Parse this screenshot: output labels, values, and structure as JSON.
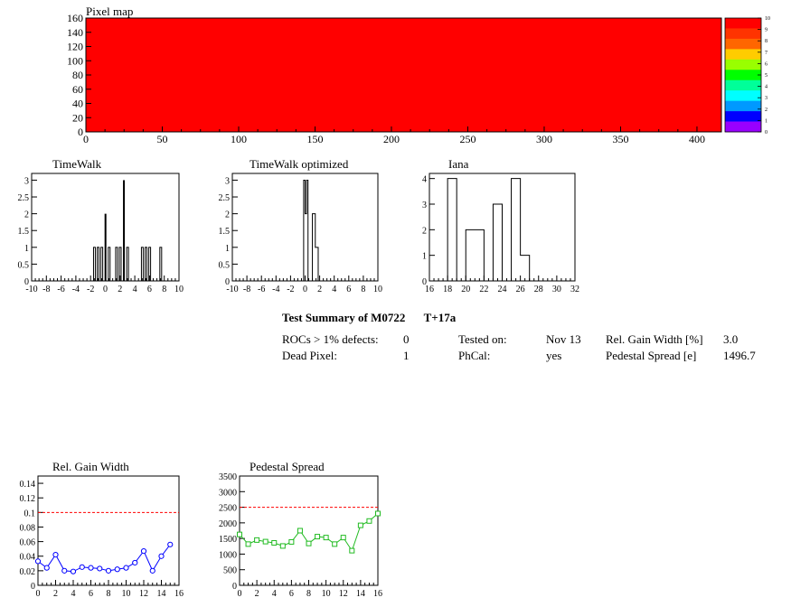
{
  "pixel_map": {
    "title": "Pixel map",
    "fill_color": "#ff0000",
    "palette_labels": [
      "10",
      "9",
      "8",
      "7",
      "6",
      "5",
      "4",
      "3",
      "2",
      "1",
      "0"
    ],
    "palette_colors": [
      "#ff0000",
      "#ff3300",
      "#ff6600",
      "#ffcc00",
      "#99ff00",
      "#00ff00",
      "#00ff99",
      "#00ffff",
      "#0099ff",
      "#0000ff",
      "#9900ff"
    ]
  },
  "chart_data": [
    {
      "type": "heatmap",
      "title": "Pixel map",
      "xlim": [
        0,
        416
      ],
      "ylim": [
        0,
        160
      ],
      "xticks": [
        0,
        50,
        100,
        150,
        200,
        250,
        300,
        350,
        400
      ],
      "yticks": [
        0,
        20,
        40,
        60,
        80,
        100,
        120,
        140,
        160
      ],
      "zlim": [
        0,
        10
      ],
      "uniform_value": 10
    },
    {
      "type": "bar",
      "title": "TimeWalk",
      "xlim": [
        -10,
        10
      ],
      "ylim": [
        0,
        3.2
      ],
      "xticks": [
        -10,
        -8,
        -6,
        -4,
        -2,
        0,
        2,
        4,
        6,
        8,
        10
      ],
      "yticks": [
        "0",
        "0.5",
        "1",
        "1.5",
        "2",
        "2.5",
        "3"
      ],
      "bins": [
        {
          "x": -1.5,
          "y": 1
        },
        {
          "x": -1.0,
          "y": 1
        },
        {
          "x": -0.5,
          "y": 1
        },
        {
          "x": 0.0,
          "y": 2
        },
        {
          "x": 0.5,
          "y": 1
        },
        {
          "x": 1.5,
          "y": 1
        },
        {
          "x": 2.0,
          "y": 1
        },
        {
          "x": 2.5,
          "y": 3
        },
        {
          "x": 3.0,
          "y": 1
        },
        {
          "x": 5.0,
          "y": 1
        },
        {
          "x": 5.5,
          "y": 1
        },
        {
          "x": 6.0,
          "y": 1
        },
        {
          "x": 7.5,
          "y": 1
        }
      ],
      "bin_width": 0.2
    },
    {
      "type": "bar",
      "title": "TimeWalk optimized",
      "xlim": [
        -10,
        10
      ],
      "ylim": [
        0,
        3.2
      ],
      "xticks": [
        -10,
        -8,
        -6,
        -4,
        -2,
        0,
        2,
        4,
        6,
        8,
        10
      ],
      "yticks": [
        "0",
        "0.5",
        "1",
        "1.5",
        "2",
        "2.5",
        "3"
      ],
      "bins": [
        {
          "x0": -0.2,
          "x1": 0.0,
          "y": 3
        },
        {
          "x0": 0.0,
          "x1": 0.2,
          "y": 2
        },
        {
          "x0": 0.2,
          "x1": 0.4,
          "y": 3
        },
        {
          "x0": 0.4,
          "x1": 1.0,
          "y": 0
        },
        {
          "x0": 1.0,
          "x1": 1.4,
          "y": 2
        },
        {
          "x0": 1.4,
          "x1": 1.8,
          "y": 1
        }
      ]
    },
    {
      "type": "bar",
      "title": "Iana",
      "xlim": [
        16,
        32
      ],
      "ylim": [
        0,
        4.2
      ],
      "xticks": [
        16,
        18,
        20,
        22,
        24,
        26,
        28,
        30,
        32
      ],
      "yticks": [
        "0",
        "1",
        "2",
        "3",
        "4"
      ],
      "bins": [
        {
          "x0": 18,
          "x1": 19,
          "y": 4
        },
        {
          "x0": 19,
          "x1": 20,
          "y": 0
        },
        {
          "x0": 20,
          "x1": 22,
          "y": 2
        },
        {
          "x0": 22,
          "x1": 23,
          "y": 0
        },
        {
          "x0": 23,
          "x1": 24,
          "y": 3
        },
        {
          "x0": 24,
          "x1": 25,
          "y": 0
        },
        {
          "x0": 25,
          "x1": 26,
          "y": 4
        },
        {
          "x0": 26,
          "x1": 27,
          "y": 1
        }
      ]
    },
    {
      "type": "line",
      "title": "Rel. Gain Width",
      "xlim": [
        0,
        16
      ],
      "ylim": [
        0,
        0.15
      ],
      "xticks": [
        0,
        2,
        4,
        6,
        8,
        10,
        12,
        14,
        16
      ],
      "yticks": [
        "0",
        "0.02",
        "0.04",
        "0.06",
        "0.08",
        "0.1",
        "0.12",
        "0.14"
      ],
      "x": [
        0,
        1,
        2,
        3,
        4,
        5,
        6,
        7,
        8,
        9,
        10,
        11,
        12,
        13,
        14,
        15
      ],
      "values": [
        0.033,
        0.024,
        0.042,
        0.02,
        0.019,
        0.025,
        0.024,
        0.023,
        0.02,
        0.022,
        0.024,
        0.031,
        0.047,
        0.02,
        0.04,
        0.056
      ],
      "threshold": 0.1,
      "series_color": "#0000ff",
      "marker": "circle",
      "threshold_color": "#ff0000"
    },
    {
      "type": "line",
      "title": "Pedestal Spread",
      "xlim": [
        0,
        16
      ],
      "ylim": [
        0,
        3500
      ],
      "xticks": [
        0,
        2,
        4,
        6,
        8,
        10,
        12,
        14,
        16
      ],
      "yticks": [
        "0",
        "500",
        "1000",
        "1500",
        "2000",
        "2500",
        "3000",
        "3500"
      ],
      "x": [
        0,
        1,
        2,
        3,
        4,
        5,
        6,
        7,
        8,
        9,
        10,
        11,
        12,
        13,
        14,
        15,
        16
      ],
      "values": [
        1630,
        1320,
        1450,
        1400,
        1360,
        1260,
        1390,
        1750,
        1340,
        1560,
        1530,
        1320,
        1530,
        1110,
        1920,
        2060,
        2300
      ],
      "threshold": 2500,
      "series_color": "#22bb22",
      "marker": "square",
      "threshold_color": "#ff0000"
    }
  ],
  "summary": {
    "title": "Test Summary of M0722",
    "tag": "T+17a",
    "rocs_label": "ROCs > 1% defects:",
    "rocs_value": "0",
    "dead_label": "Dead Pixel:",
    "dead_value": "1",
    "tested_label": "Tested on:",
    "tested_value": "Nov 13",
    "phcal_label": "PhCal:",
    "phcal_value": "yes",
    "gain_label": "Rel. Gain Width [%]",
    "gain_value": "3.0",
    "ped_label": "Pedestal Spread [e]",
    "ped_value": "1496.7"
  }
}
